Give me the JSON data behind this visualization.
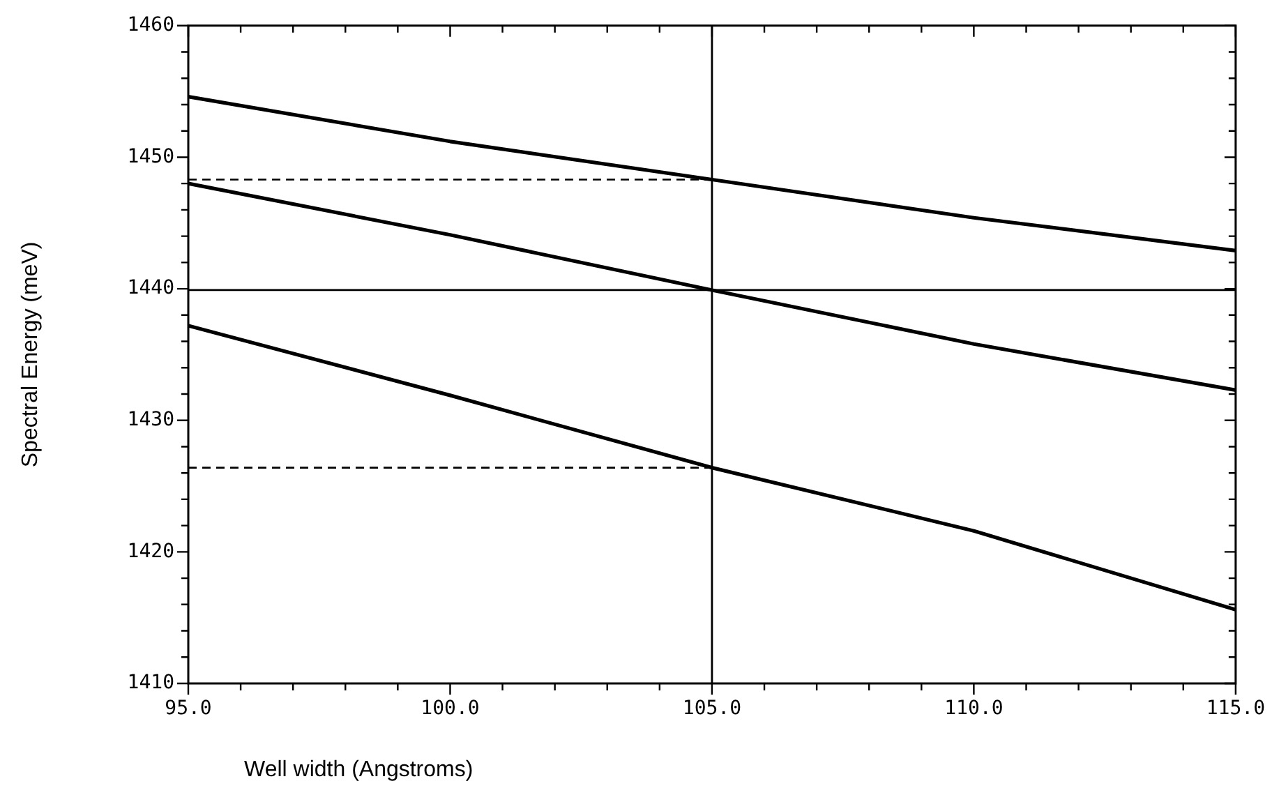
{
  "chart_data": {
    "type": "line",
    "xlabel": "Well width (Angstroms)",
    "ylabel": "Spectral Energy (meV)",
    "xlim": [
      95,
      115
    ],
    "ylim": [
      1410,
      1460
    ],
    "xticks": [
      {
        "value": 95,
        "label": "95.0"
      },
      {
        "value": 96,
        "label": null
      },
      {
        "value": 97,
        "label": null
      },
      {
        "value": 98,
        "label": null
      },
      {
        "value": 99,
        "label": null
      },
      {
        "value": 100,
        "label": "100.0"
      },
      {
        "value": 101,
        "label": null
      },
      {
        "value": 102,
        "label": null
      },
      {
        "value": 103,
        "label": null
      },
      {
        "value": 104,
        "label": null
      },
      {
        "value": 105,
        "label": "105.0"
      },
      {
        "value": 106,
        "label": null
      },
      {
        "value": 107,
        "label": null
      },
      {
        "value": 108,
        "label": null
      },
      {
        "value": 109,
        "label": null
      },
      {
        "value": 110,
        "label": "110.0"
      },
      {
        "value": 111,
        "label": null
      },
      {
        "value": 112,
        "label": null
      },
      {
        "value": 113,
        "label": null
      },
      {
        "value": 114,
        "label": null
      },
      {
        "value": 115,
        "label": "115.0"
      }
    ],
    "yticks": [
      1410,
      {
        "value": 1412,
        "label": null
      },
      {
        "value": 1414,
        "label": null
      },
      {
        "value": 1416,
        "label": null
      },
      {
        "value": 1418,
        "label": null
      },
      1420,
      {
        "value": 1422,
        "label": null
      },
      {
        "value": 1424,
        "label": null
      },
      {
        "value": 1426,
        "label": null
      },
      {
        "value": 1428,
        "label": null
      },
      1430,
      {
        "value": 1432,
        "label": null
      },
      {
        "value": 1434,
        "label": null
      },
      {
        "value": 1436,
        "label": null
      },
      {
        "value": 1438,
        "label": null
      },
      1440,
      {
        "value": 1442,
        "label": null
      },
      {
        "value": 1444,
        "label": null
      },
      {
        "value": 1446,
        "label": null
      },
      {
        "value": 1448,
        "label": null
      },
      1450,
      {
        "value": 1452,
        "label": null
      },
      {
        "value": 1454,
        "label": null
      },
      {
        "value": 1456,
        "label": null
      },
      {
        "value": 1458,
        "label": null
      },
      1460
    ],
    "x": [
      95,
      100,
      105,
      110,
      115
    ],
    "series": [
      {
        "color": "#000000",
        "line_style": "solid",
        "values": [
          1454.6,
          1451.2,
          1448.3,
          1445.4,
          1442.9
        ]
      },
      {
        "color": "#000000",
        "line_style": "solid",
        "values": [
          1448.0,
          1444.1,
          1439.9,
          1435.8,
          1432.3
        ]
      },
      {
        "color": "#000000",
        "line_style": "solid",
        "values": [
          1437.2,
          1431.9,
          1426.4,
          1421.6,
          1415.6
        ]
      },
      {
        "color": "#000000",
        "line_style": "dashed",
        "values": [
          1448.3,
          1448.3,
          1448.3,
          null,
          null
        ]
      },
      {
        "color": "#000000",
        "line_style": "dashed",
        "values": [
          1426.4,
          1426.4,
          1426.4,
          null,
          null
        ]
      }
    ],
    "ref_lines": [
      {
        "axis": "y",
        "value": 1439.9,
        "color": "#000000",
        "line_style": "solid"
      },
      {
        "axis": "x",
        "value": 105,
        "color": "#000000",
        "line_style": "solid"
      }
    ],
    "grid": false,
    "legend": false,
    "marker": "none"
  }
}
